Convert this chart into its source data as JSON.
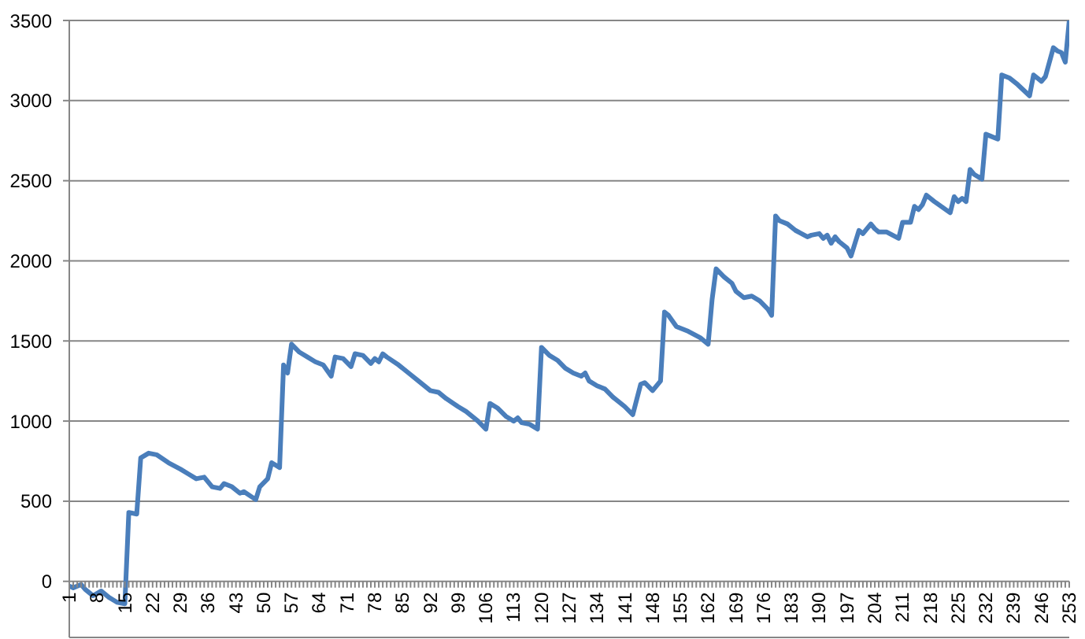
{
  "chart_data": {
    "type": "line",
    "x": [
      1,
      2,
      4,
      5,
      7,
      9,
      11,
      13,
      15,
      16,
      18,
      19,
      21,
      23,
      26,
      29,
      31,
      33,
      35,
      37,
      39,
      40,
      42,
      44,
      45,
      48,
      49,
      51,
      52,
      54,
      55,
      56,
      57,
      59,
      61,
      63,
      65,
      67,
      68,
      70,
      72,
      73,
      75,
      77,
      78,
      79,
      80,
      81,
      84,
      87,
      89,
      92,
      94,
      96,
      99,
      101,
      104,
      106,
      107,
      109,
      111,
      113,
      114,
      115,
      117,
      119,
      120,
      122,
      124,
      126,
      128,
      130,
      131,
      132,
      134,
      136,
      138,
      141,
      143,
      145,
      146,
      148,
      150,
      151,
      152,
      154,
      157,
      160,
      162,
      163,
      164,
      166,
      168,
      169,
      171,
      173,
      175,
      177,
      178,
      179,
      180,
      182,
      184,
      187,
      188,
      190,
      191,
      192,
      193,
      194,
      195,
      197,
      198,
      200,
      201,
      203,
      204,
      205,
      207,
      210,
      211,
      213,
      214,
      215,
      216,
      217,
      219,
      223,
      224,
      225,
      226,
      227,
      228,
      229,
      231,
      232,
      233,
      235,
      236,
      238,
      240,
      243,
      244,
      246,
      247,
      249,
      250,
      251,
      252,
      253
    ],
    "series": [
      {
        "color": "#4a7ebb",
        "values": [
          -30,
          -40,
          -20,
          -50,
          -90,
          -60,
          -100,
          -130,
          -140,
          430,
          420,
          770,
          800,
          790,
          740,
          700,
          670,
          640,
          650,
          590,
          580,
          610,
          590,
          550,
          560,
          510,
          590,
          640,
          740,
          710,
          1350,
          1300,
          1480,
          1430,
          1400,
          1370,
          1350,
          1280,
          1400,
          1390,
          1340,
          1420,
          1410,
          1360,
          1390,
          1370,
          1420,
          1400,
          1350,
          1290,
          1250,
          1190,
          1180,
          1140,
          1090,
          1060,
          1000,
          950,
          1110,
          1080,
          1030,
          1000,
          1020,
          990,
          980,
          950,
          1460,
          1410,
          1380,
          1330,
          1300,
          1280,
          1300,
          1250,
          1220,
          1200,
          1150,
          1090,
          1040,
          1230,
          1240,
          1190,
          1250,
          1680,
          1660,
          1590,
          1560,
          1520,
          1480,
          1760,
          1950,
          1900,
          1860,
          1810,
          1770,
          1780,
          1750,
          1700,
          1660,
          2280,
          2250,
          2230,
          2190,
          2150,
          2160,
          2170,
          2140,
          2160,
          2110,
          2150,
          2120,
          2080,
          2030,
          2190,
          2170,
          2230,
          2200,
          2180,
          2180,
          2140,
          2240,
          2240,
          2340,
          2320,
          2350,
          2410,
          2370,
          2300,
          2400,
          2370,
          2390,
          2370,
          2570,
          2540,
          2510,
          2790,
          2780,
          2760,
          3160,
          3140,
          3100,
          3030,
          3160,
          3120,
          3150,
          3330,
          3310,
          3300,
          3240,
          3500
        ]
      }
    ],
    "xlim": [
      1,
      253
    ],
    "xticks": [
      1,
      {
        "value": 2,
        "label": null
      },
      {
        "value": 3,
        "label": null
      },
      {
        "value": 4,
        "label": null
      },
      {
        "value": 5,
        "label": null
      },
      {
        "value": 6,
        "label": null
      },
      {
        "value": 7,
        "label": null
      },
      8,
      {
        "value": 9,
        "label": null
      },
      {
        "value": 10,
        "label": null
      },
      {
        "value": 11,
        "label": null
      },
      {
        "value": 12,
        "label": null
      },
      {
        "value": 13,
        "label": null
      },
      {
        "value": 14,
        "label": null
      },
      15,
      {
        "value": 16,
        "label": null
      },
      {
        "value": 17,
        "label": null
      },
      {
        "value": 18,
        "label": null
      },
      {
        "value": 19,
        "label": null
      },
      {
        "value": 20,
        "label": null
      },
      {
        "value": 21,
        "label": null
      },
      22,
      {
        "value": 23,
        "label": null
      },
      {
        "value": 24,
        "label": null
      },
      {
        "value": 25,
        "label": null
      },
      {
        "value": 26,
        "label": null
      },
      {
        "value": 27,
        "label": null
      },
      {
        "value": 28,
        "label": null
      },
      29,
      {
        "value": 30,
        "label": null
      },
      {
        "value": 31,
        "label": null
      },
      {
        "value": 32,
        "label": null
      },
      {
        "value": 33,
        "label": null
      },
      {
        "value": 34,
        "label": null
      },
      {
        "value": 35,
        "label": null
      },
      36,
      {
        "value": 37,
        "label": null
      },
      {
        "value": 38,
        "label": null
      },
      {
        "value": 39,
        "label": null
      },
      {
        "value": 40,
        "label": null
      },
      {
        "value": 41,
        "label": null
      },
      {
        "value": 42,
        "label": null
      },
      43,
      {
        "value": 44,
        "label": null
      },
      {
        "value": 45,
        "label": null
      },
      {
        "value": 46,
        "label": null
      },
      {
        "value": 47,
        "label": null
      },
      {
        "value": 48,
        "label": null
      },
      {
        "value": 49,
        "label": null
      },
      50,
      {
        "value": 51,
        "label": null
      },
      {
        "value": 52,
        "label": null
      },
      {
        "value": 53,
        "label": null
      },
      {
        "value": 54,
        "label": null
      },
      {
        "value": 55,
        "label": null
      },
      {
        "value": 56,
        "label": null
      },
      57,
      {
        "value": 58,
        "label": null
      },
      {
        "value": 59,
        "label": null
      },
      {
        "value": 60,
        "label": null
      },
      {
        "value": 61,
        "label": null
      },
      {
        "value": 62,
        "label": null
      },
      {
        "value": 63,
        "label": null
      },
      64,
      {
        "value": 65,
        "label": null
      },
      {
        "value": 66,
        "label": null
      },
      {
        "value": 67,
        "label": null
      },
      {
        "value": 68,
        "label": null
      },
      {
        "value": 69,
        "label": null
      },
      {
        "value": 70,
        "label": null
      },
      71,
      {
        "value": 72,
        "label": null
      },
      {
        "value": 73,
        "label": null
      },
      {
        "value": 74,
        "label": null
      },
      {
        "value": 75,
        "label": null
      },
      {
        "value": 76,
        "label": null
      },
      {
        "value": 77,
        "label": null
      },
      78,
      {
        "value": 79,
        "label": null
      },
      {
        "value": 80,
        "label": null
      },
      {
        "value": 81,
        "label": null
      },
      {
        "value": 82,
        "label": null
      },
      {
        "value": 83,
        "label": null
      },
      {
        "value": 84,
        "label": null
      },
      85,
      {
        "value": 86,
        "label": null
      },
      {
        "value": 87,
        "label": null
      },
      {
        "value": 88,
        "label": null
      },
      {
        "value": 89,
        "label": null
      },
      {
        "value": 90,
        "label": null
      },
      {
        "value": 91,
        "label": null
      },
      92,
      {
        "value": 93,
        "label": null
      },
      {
        "value": 94,
        "label": null
      },
      {
        "value": 95,
        "label": null
      },
      {
        "value": 96,
        "label": null
      },
      {
        "value": 97,
        "label": null
      },
      {
        "value": 98,
        "label": null
      },
      99,
      {
        "value": 100,
        "label": null
      },
      {
        "value": 101,
        "label": null
      },
      {
        "value": 102,
        "label": null
      },
      {
        "value": 103,
        "label": null
      },
      {
        "value": 104,
        "label": null
      },
      {
        "value": 105,
        "label": null
      },
      106,
      {
        "value": 107,
        "label": null
      },
      {
        "value": 108,
        "label": null
      },
      {
        "value": 109,
        "label": null
      },
      {
        "value": 110,
        "label": null
      },
      {
        "value": 111,
        "label": null
      },
      {
        "value": 112,
        "label": null
      },
      113,
      {
        "value": 114,
        "label": null
      },
      {
        "value": 115,
        "label": null
      },
      {
        "value": 116,
        "label": null
      },
      {
        "value": 117,
        "label": null
      },
      {
        "value": 118,
        "label": null
      },
      {
        "value": 119,
        "label": null
      },
      120,
      {
        "value": 121,
        "label": null
      },
      {
        "value": 122,
        "label": null
      },
      {
        "value": 123,
        "label": null
      },
      {
        "value": 124,
        "label": null
      },
      {
        "value": 125,
        "label": null
      },
      {
        "value": 126,
        "label": null
      },
      127,
      {
        "value": 128,
        "label": null
      },
      {
        "value": 129,
        "label": null
      },
      {
        "value": 130,
        "label": null
      },
      {
        "value": 131,
        "label": null
      },
      {
        "value": 132,
        "label": null
      },
      {
        "value": 133,
        "label": null
      },
      134,
      {
        "value": 135,
        "label": null
      },
      {
        "value": 136,
        "label": null
      },
      {
        "value": 137,
        "label": null
      },
      {
        "value": 138,
        "label": null
      },
      {
        "value": 139,
        "label": null
      },
      {
        "value": 140,
        "label": null
      },
      141,
      {
        "value": 142,
        "label": null
      },
      {
        "value": 143,
        "label": null
      },
      {
        "value": 144,
        "label": null
      },
      {
        "value": 145,
        "label": null
      },
      {
        "value": 146,
        "label": null
      },
      {
        "value": 147,
        "label": null
      },
      148,
      {
        "value": 149,
        "label": null
      },
      {
        "value": 150,
        "label": null
      },
      {
        "value": 151,
        "label": null
      },
      {
        "value": 152,
        "label": null
      },
      {
        "value": 153,
        "label": null
      },
      {
        "value": 154,
        "label": null
      },
      155,
      {
        "value": 156,
        "label": null
      },
      {
        "value": 157,
        "label": null
      },
      {
        "value": 158,
        "label": null
      },
      {
        "value": 159,
        "label": null
      },
      {
        "value": 160,
        "label": null
      },
      {
        "value": 161,
        "label": null
      },
      162,
      {
        "value": 163,
        "label": null
      },
      {
        "value": 164,
        "label": null
      },
      {
        "value": 165,
        "label": null
      },
      {
        "value": 166,
        "label": null
      },
      {
        "value": 167,
        "label": null
      },
      {
        "value": 168,
        "label": null
      },
      169,
      {
        "value": 170,
        "label": null
      },
      {
        "value": 171,
        "label": null
      },
      {
        "value": 172,
        "label": null
      },
      {
        "value": 173,
        "label": null
      },
      {
        "value": 174,
        "label": null
      },
      {
        "value": 175,
        "label": null
      },
      176,
      {
        "value": 177,
        "label": null
      },
      {
        "value": 178,
        "label": null
      },
      {
        "value": 179,
        "label": null
      },
      {
        "value": 180,
        "label": null
      },
      {
        "value": 181,
        "label": null
      },
      {
        "value": 182,
        "label": null
      },
      183,
      {
        "value": 184,
        "label": null
      },
      {
        "value": 185,
        "label": null
      },
      {
        "value": 186,
        "label": null
      },
      {
        "value": 187,
        "label": null
      },
      {
        "value": 188,
        "label": null
      },
      {
        "value": 189,
        "label": null
      },
      190,
      {
        "value": 191,
        "label": null
      },
      {
        "value": 192,
        "label": null
      },
      {
        "value": 193,
        "label": null
      },
      {
        "value": 194,
        "label": null
      },
      {
        "value": 195,
        "label": null
      },
      {
        "value": 196,
        "label": null
      },
      197,
      {
        "value": 198,
        "label": null
      },
      {
        "value": 199,
        "label": null
      },
      {
        "value": 200,
        "label": null
      },
      {
        "value": 201,
        "label": null
      },
      {
        "value": 202,
        "label": null
      },
      {
        "value": 203,
        "label": null
      },
      204,
      {
        "value": 205,
        "label": null
      },
      {
        "value": 206,
        "label": null
      },
      {
        "value": 207,
        "label": null
      },
      {
        "value": 208,
        "label": null
      },
      {
        "value": 209,
        "label": null
      },
      {
        "value": 210,
        "label": null
      },
      211,
      {
        "value": 212,
        "label": null
      },
      {
        "value": 213,
        "label": null
      },
      {
        "value": 214,
        "label": null
      },
      {
        "value": 215,
        "label": null
      },
      {
        "value": 216,
        "label": null
      },
      {
        "value": 217,
        "label": null
      },
      218,
      {
        "value": 219,
        "label": null
      },
      {
        "value": 220,
        "label": null
      },
      {
        "value": 221,
        "label": null
      },
      {
        "value": 222,
        "label": null
      },
      {
        "value": 223,
        "label": null
      },
      {
        "value": 224,
        "label": null
      },
      225,
      {
        "value": 226,
        "label": null
      },
      {
        "value": 227,
        "label": null
      },
      {
        "value": 228,
        "label": null
      },
      {
        "value": 229,
        "label": null
      },
      {
        "value": 230,
        "label": null
      },
      {
        "value": 231,
        "label": null
      },
      232,
      {
        "value": 233,
        "label": null
      },
      {
        "value": 234,
        "label": null
      },
      {
        "value": 235,
        "label": null
      },
      {
        "value": 236,
        "label": null
      },
      {
        "value": 237,
        "label": null
      },
      {
        "value": 238,
        "label": null
      },
      239,
      {
        "value": 240,
        "label": null
      },
      {
        "value": 241,
        "label": null
      },
      {
        "value": 242,
        "label": null
      },
      {
        "value": 243,
        "label": null
      },
      {
        "value": 244,
        "label": null
      },
      {
        "value": 245,
        "label": null
      },
      246,
      {
        "value": 247,
        "label": null
      },
      {
        "value": 248,
        "label": null
      },
      {
        "value": 249,
        "label": null
      },
      {
        "value": 250,
        "label": null
      },
      {
        "value": 251,
        "label": null
      },
      {
        "value": 252,
        "label": null
      },
      253
    ],
    "ylim": [
      -350,
      3500
    ],
    "yticks": [
      0,
      500,
      1000,
      1500,
      2000,
      2500,
      3000,
      3500
    ],
    "grid": "y",
    "marker": "none",
    "line_style": "solid"
  }
}
